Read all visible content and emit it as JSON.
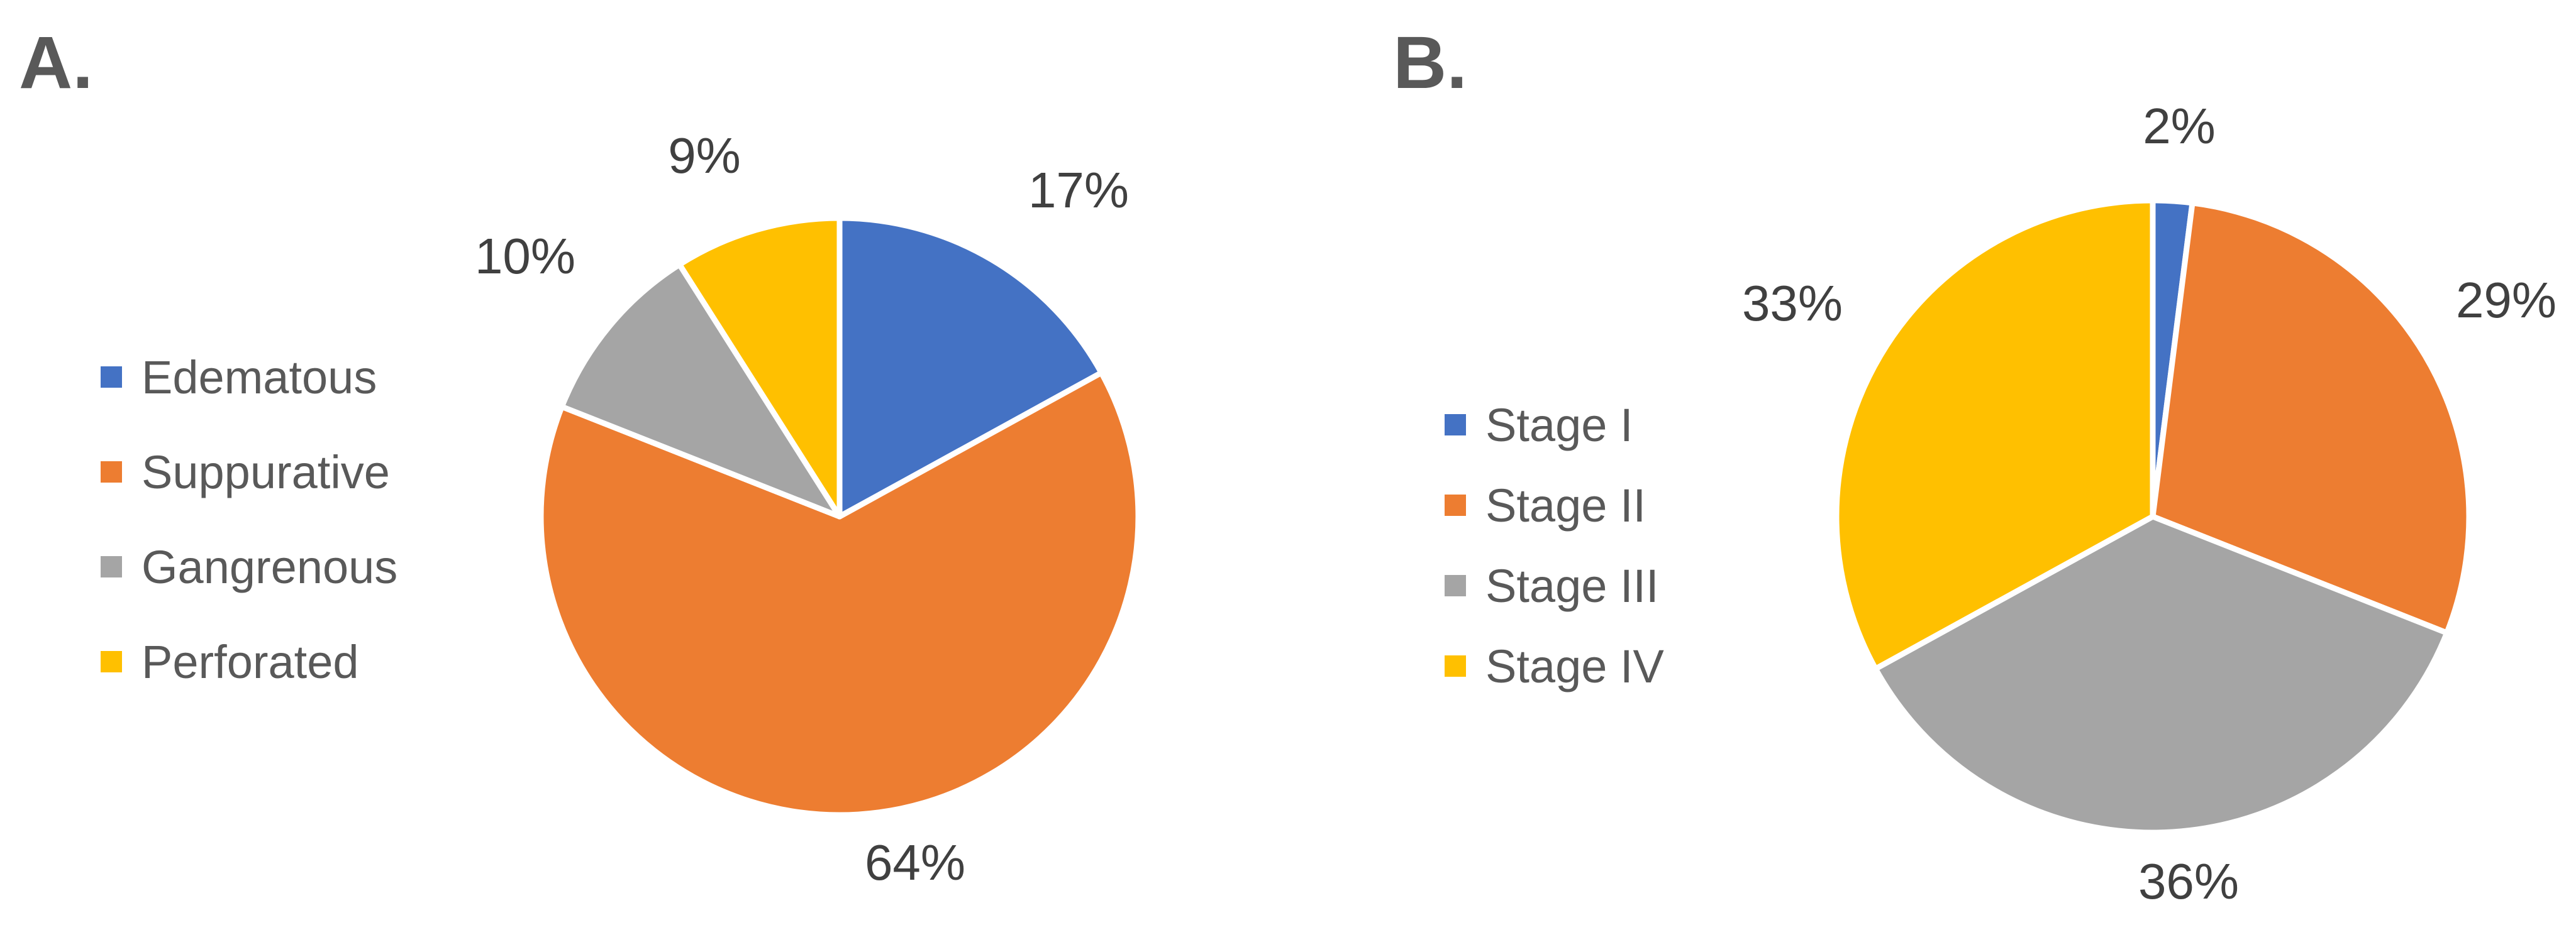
{
  "chart_data": [
    {
      "type": "pie",
      "panel_label": "A.",
      "title": "",
      "legend_position": "left",
      "slices": [
        {
          "label": "Edematous",
          "value": 17,
          "display": "17%",
          "color": "#4472C4"
        },
        {
          "label": "Suppurative",
          "value": 64,
          "display": "64%",
          "color": "#ED7D31"
        },
        {
          "label": "Gangrenous",
          "value": 10,
          "display": "10%",
          "color": "#A5A5A5"
        },
        {
          "label": "Perforated",
          "value": 9,
          "display": "9%",
          "color": "#FFC000"
        }
      ]
    },
    {
      "type": "pie",
      "panel_label": "B.",
      "title": "",
      "legend_position": "left",
      "slices": [
        {
          "label": "Stage I",
          "value": 2,
          "display": "2%",
          "color": "#4472C4"
        },
        {
          "label": "Stage II",
          "value": 29,
          "display": "29%",
          "color": "#ED7D31"
        },
        {
          "label": "Stage III",
          "value": 36,
          "display": "36%",
          "color": "#A5A5A5"
        },
        {
          "label": "Stage IV",
          "value": 33,
          "display": "33%",
          "color": "#FFC000"
        }
      ]
    }
  ]
}
